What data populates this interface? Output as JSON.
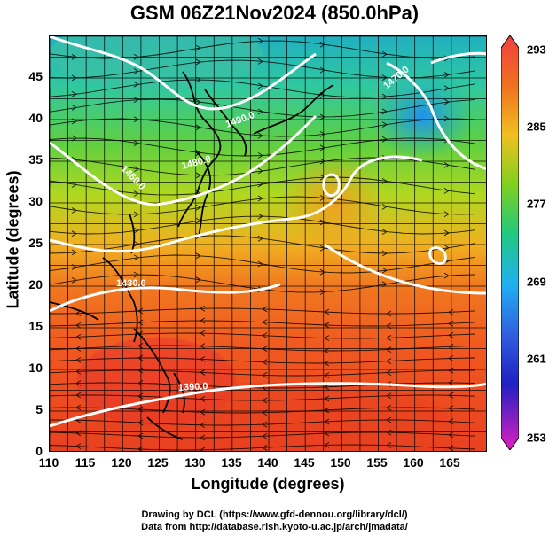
{
  "title": "GSM 06Z21Nov2024 (850.0hPa)",
  "xlabel": "Longitude (degrees)",
  "ylabel": "Latitude  (degrees)",
  "credit_line1": "Drawing by DCL (https://www.gfd-dennou.org/library/dcl/)",
  "credit_line2": "Data from http://database.rish.kyoto-u.ac.jp/arch/jmadata/",
  "map": {
    "lon_range": [
      110,
      170
    ],
    "lat_range": [
      0,
      50
    ],
    "lon_ticks": [
      "110",
      "115",
      "120",
      "125",
      "130",
      "135",
      "140",
      "145",
      "150",
      "155",
      "160",
      "165"
    ],
    "lat_ticks": [
      "0",
      "5",
      "10",
      "15",
      "20",
      "25",
      "30",
      "35",
      "40",
      "45"
    ],
    "contour_labels": [
      "1490.0",
      "1480.0",
      "1460.0",
      "1470.0",
      "1430.0",
      "1390.0"
    ],
    "colorbar": {
      "ticks": [
        "293",
        "285",
        "277",
        "269",
        "261",
        "253"
      ],
      "colors": [
        "#f04040",
        "#f07020",
        "#f0a020",
        "#d8d820",
        "#40c020",
        "#20c8a0",
        "#20a8f0",
        "#3060e0",
        "#2020c0",
        "#c020c0"
      ]
    }
  }
}
